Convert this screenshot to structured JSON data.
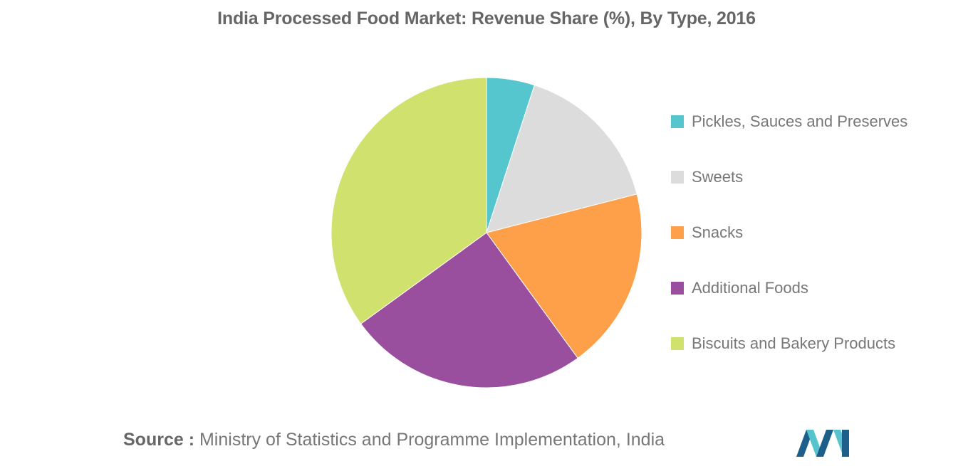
{
  "chart_data": {
    "type": "pie",
    "title": "India Processed Food Market: Revenue Share (%), By Type, 2016",
    "categories": [
      "Pickles, Sauces and Preserves",
      "Sweets",
      "Snacks",
      "Additional Foods",
      "Biscuits and Bakery Products"
    ],
    "values": [
      5,
      16,
      19,
      25,
      35
    ],
    "colors": [
      "#55c6ce",
      "#dcdcdc",
      "#fda049",
      "#9a4f9e",
      "#d1e16d"
    ],
    "legend_position": "right",
    "start_angle": "12 o'clock",
    "direction": "clockwise"
  },
  "source": {
    "label": "Source :",
    "text": "Ministry of Statistics and Programme Implementation, India"
  },
  "logo": {
    "icon": "brand-logo-icon",
    "colors": [
      "#1d5f8a",
      "#56c3cf"
    ]
  }
}
